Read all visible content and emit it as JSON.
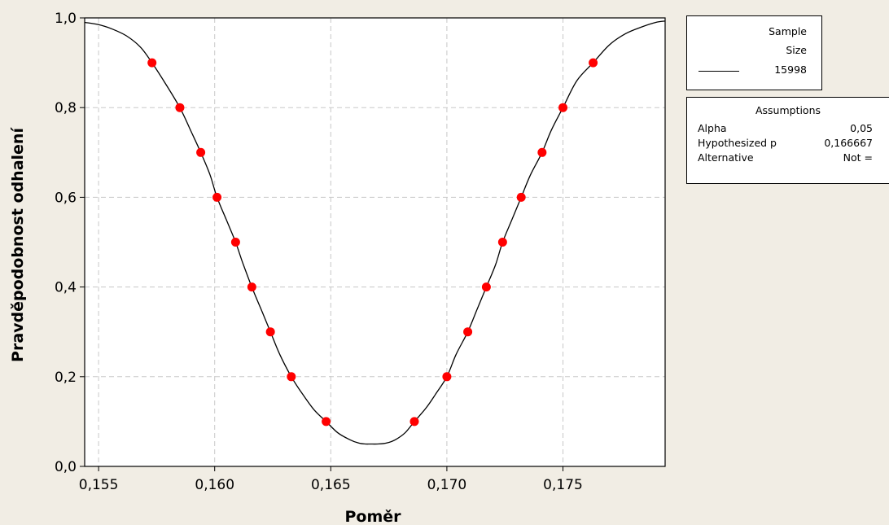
{
  "chart_data": {
    "type": "line",
    "title": "",
    "xlabel": "Poměr",
    "ylabel": "Pravděpodobnost odhalení",
    "xlim": [
      0.1544,
      0.1794
    ],
    "ylim": [
      0,
      1
    ],
    "x_ticks": [
      0.155,
      0.16,
      0.165,
      0.17,
      0.175
    ],
    "x_tick_labels": [
      "0,155",
      "0,160",
      "0,165",
      "0,170",
      "0,175"
    ],
    "y_ticks": [
      0,
      0.2,
      0.4,
      0.6,
      0.8,
      1.0
    ],
    "y_tick_labels": [
      "0,0",
      "0,2",
      "0,4",
      "0,6",
      "0,8",
      "1,0"
    ],
    "grid": true,
    "series": [
      {
        "name": "15998",
        "color": "#000000",
        "x": [
          0.1544,
          0.155,
          0.1556,
          0.1562,
          0.1568,
          0.1573,
          0.1578,
          0.1585,
          0.159,
          0.1594,
          0.1598,
          0.1601,
          0.1605,
          0.1609,
          0.1612,
          0.1616,
          0.162,
          0.1624,
          0.1628,
          0.1633,
          0.1638,
          0.1643,
          0.1648,
          0.1653,
          0.1658,
          0.1662,
          0.1665,
          0.1667,
          0.167,
          0.1674,
          0.1678,
          0.1682,
          0.1686,
          0.1691,
          0.1695,
          0.17,
          0.1704,
          0.1709,
          0.1713,
          0.1717,
          0.1721,
          0.1724,
          0.1728,
          0.1732,
          0.1736,
          0.1741,
          0.1745,
          0.175,
          0.1756,
          0.1763,
          0.177,
          0.1777,
          0.1784,
          0.179,
          0.1794
        ],
        "y": [
          0.99,
          0.985,
          0.975,
          0.96,
          0.935,
          0.9,
          0.86,
          0.8,
          0.745,
          0.7,
          0.65,
          0.6,
          0.55,
          0.5,
          0.455,
          0.4,
          0.35,
          0.3,
          0.25,
          0.2,
          0.16,
          0.125,
          0.1,
          0.075,
          0.06,
          0.052,
          0.05,
          0.05,
          0.05,
          0.052,
          0.06,
          0.075,
          0.1,
          0.13,
          0.16,
          0.2,
          0.25,
          0.3,
          0.35,
          0.4,
          0.45,
          0.5,
          0.55,
          0.6,
          0.65,
          0.7,
          0.75,
          0.8,
          0.86,
          0.9,
          0.94,
          0.965,
          0.98,
          0.99,
          0.993
        ]
      }
    ],
    "points": {
      "color": "#ff0000",
      "x": [
        0.1573,
        0.1585,
        0.1594,
        0.1601,
        0.1609,
        0.1616,
        0.1624,
        0.1633,
        0.1648,
        0.1686,
        0.17,
        0.1709,
        0.1717,
        0.1724,
        0.1732,
        0.1741,
        0.175,
        0.1763
      ],
      "y": [
        0.9,
        0.8,
        0.7,
        0.6,
        0.5,
        0.4,
        0.3,
        0.2,
        0.1,
        0.1,
        0.2,
        0.3,
        0.4,
        0.5,
        0.6,
        0.7,
        0.8,
        0.9
      ]
    }
  },
  "legend": {
    "header_line1": "Sample",
    "header_line2": "Size",
    "size_value": "15998"
  },
  "assumptions": {
    "title": "Assumptions",
    "rows": [
      {
        "label": "Alpha",
        "value": "0,05"
      },
      {
        "label": "Hypothesized p",
        "value": "0,166667"
      },
      {
        "label": "Alternative",
        "value": "Not ="
      }
    ]
  }
}
